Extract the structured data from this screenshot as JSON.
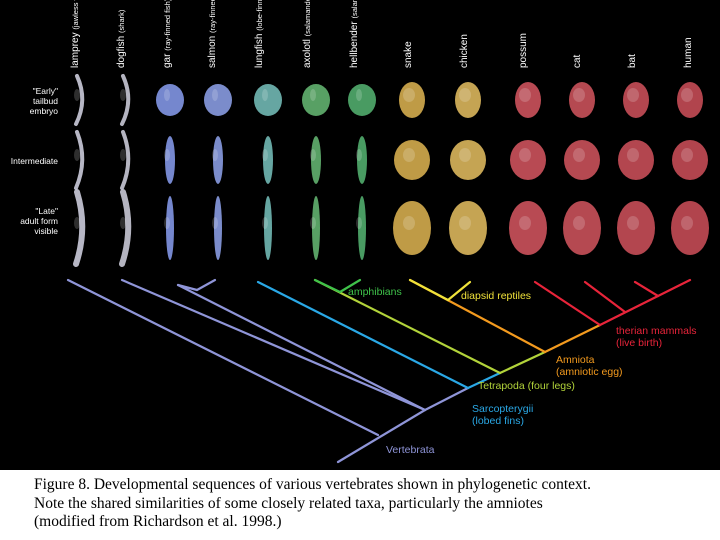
{
  "taxa": [
    {
      "name": "lamprey",
      "sub": "(jawless vertebrate)",
      "color": "#c7c7d6"
    },
    {
      "name": "dogfish",
      "sub": "(shark)",
      "color": "#c3c3d0"
    },
    {
      "name": "gar",
      "sub": "(ray-finned fish)",
      "color": "#7f93df"
    },
    {
      "name": "salmon",
      "sub": "(ray-finned fish)",
      "color": "#8598dc"
    },
    {
      "name": "lungfish",
      "sub": "(lobe-finned fish)",
      "color": "#6fb4b0"
    },
    {
      "name": "axolotl",
      "sub": "(salamander)",
      "color": "#5fae6c"
    },
    {
      "name": "hellbender",
      "sub": "(salamander)",
      "color": "#4fa86a"
    },
    {
      "name": "snake",
      "sub": "",
      "color": "#cfa84c"
    },
    {
      "name": "chicken",
      "sub": "",
      "color": "#d6b25a"
    },
    {
      "name": "possum",
      "sub": "",
      "color": "#c8505a"
    },
    {
      "name": "cat",
      "sub": "",
      "color": "#c44f58"
    },
    {
      "name": "bat",
      "sub": "",
      "color": "#c24c56"
    },
    {
      "name": "human",
      "sub": "",
      "color": "#c04a54"
    }
  ],
  "stages": [
    {
      "lines": [
        "\"Early\"",
        "tailbud",
        "embryo"
      ]
    },
    {
      "lines": [
        "Intermediate"
      ]
    },
    {
      "lines": [
        "\"Late\"",
        "adult form",
        "visible"
      ]
    }
  ],
  "clades": [
    {
      "label": "amphibians",
      "color": "#3fc24a"
    },
    {
      "label": "diapsid reptiles",
      "color": "#f0e23a"
    },
    {
      "label": "therian mammals",
      "sub": "(live birth)",
      "color": "#e8243a"
    },
    {
      "label": "Amniota",
      "sub": "(amniotic egg)",
      "color": "#f39a1e"
    },
    {
      "label": "Tetrapoda (four legs)",
      "color": "#b2d33a"
    },
    {
      "label": "Sarcopterygii",
      "sub": "(lobed fins)",
      "color": "#2aa8e6"
    },
    {
      "label": "Vertebrata",
      "color": "#8f95d8"
    }
  ],
  "caption": [
    "Figure 8. Developmental sequences of various vertebrates shown in phylogenetic context.",
    "Note the shared similarities of some closely related taxa, particularly the amniotes",
    "(modified from Richardson et al. 1998.)"
  ]
}
